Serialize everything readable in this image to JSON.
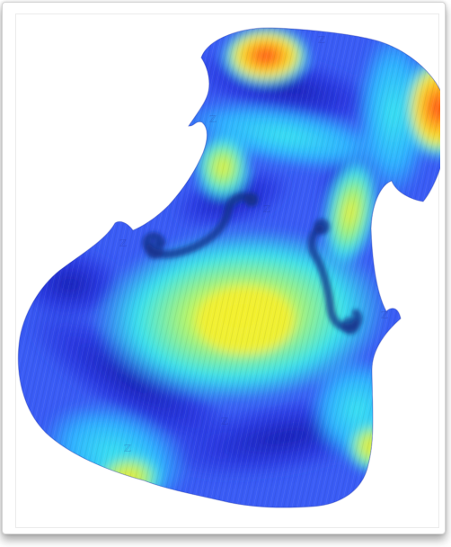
{
  "image": {
    "subject": "violin-top-plate-vibration-mode",
    "colormap": [
      "#0a1f9e",
      "#2836e0",
      "#3e6cff",
      "#2fb0ff",
      "#36e6f0",
      "#9df57a",
      "#f2f234",
      "#ffb21e",
      "#ff4a1a"
    ],
    "background": "#ffffff"
  }
}
